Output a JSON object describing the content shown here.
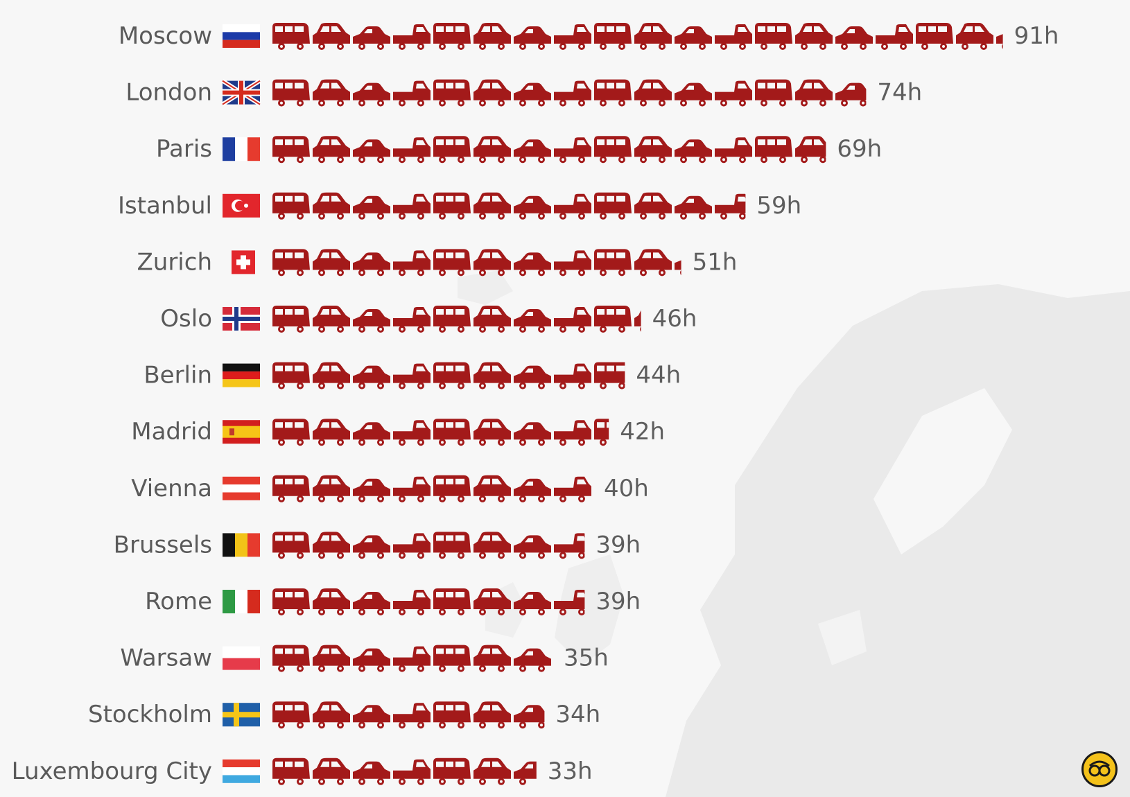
{
  "chart_data": {
    "type": "bar",
    "categories": [
      "Moscow",
      "London",
      "Paris",
      "Istanbul",
      "Zurich",
      "Oslo",
      "Berlin",
      "Madrid",
      "Vienna",
      "Brussels",
      "Rome",
      "Warsaw",
      "Stockholm",
      "Luxembourg City"
    ],
    "values": [
      91,
      74,
      69,
      59,
      51,
      46,
      44,
      42,
      40,
      39,
      39,
      35,
      34,
      33
    ],
    "value_labels": [
      "91h",
      "74h",
      "69h",
      "59h",
      "51h",
      "46h",
      "44h",
      "42h",
      "40h",
      "39h",
      "39h",
      "35h",
      "34h",
      "33h"
    ],
    "flags": [
      "flag-russia",
      "flag-united-kingdom",
      "flag-france",
      "flag-turkey",
      "flag-switzerland",
      "flag-norway",
      "flag-germany",
      "flag-spain",
      "flag-austria",
      "flag-belgium",
      "flag-italy",
      "flag-poland",
      "flag-sweden",
      "flag-luxembourg"
    ],
    "mark_icons": [
      "van-icon",
      "hatchback-icon",
      "sedan-icon",
      "pickup-icon"
    ],
    "mark_color": "#a31a1a",
    "title": "",
    "xlabel": "",
    "ylabel": ""
  },
  "logo": {
    "icon": "logo-icon",
    "color": "#f4c21b"
  }
}
